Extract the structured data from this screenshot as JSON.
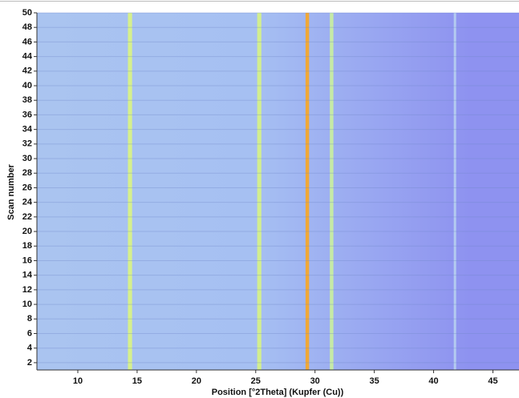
{
  "chart_data": {
    "type": "heatmap",
    "x_label": "Position [°2Theta] (Kupfer (Cu))",
    "y_label": "Scan number",
    "xlim": [
      6.55,
      47.2
    ],
    "xticks": [
      10,
      15,
      20,
      25,
      30,
      35,
      40,
      45
    ],
    "ylim": [
      1,
      50
    ],
    "yticks": [
      2,
      4,
      6,
      8,
      10,
      12,
      14,
      16,
      18,
      20,
      22,
      24,
      26,
      28,
      30,
      32,
      34,
      36,
      38,
      40,
      42,
      44,
      46,
      48,
      50
    ],
    "grid": true,
    "background_colors": [
      "#aac4f0",
      "#a6c0f2",
      "#8e92f0"
    ],
    "stripes": [
      {
        "x": 14.4,
        "width": 0.35,
        "color": "#d6f08c"
      },
      {
        "x": 25.3,
        "width": 0.35,
        "color": "#d2ee90"
      },
      {
        "x": 29.35,
        "width": 0.3,
        "color": "#f0a838"
      },
      {
        "x": 31.4,
        "width": 0.3,
        "color": "#c6eaa6"
      },
      {
        "x": 41.8,
        "width": 0.2,
        "color": "#b4cbf0"
      }
    ]
  }
}
